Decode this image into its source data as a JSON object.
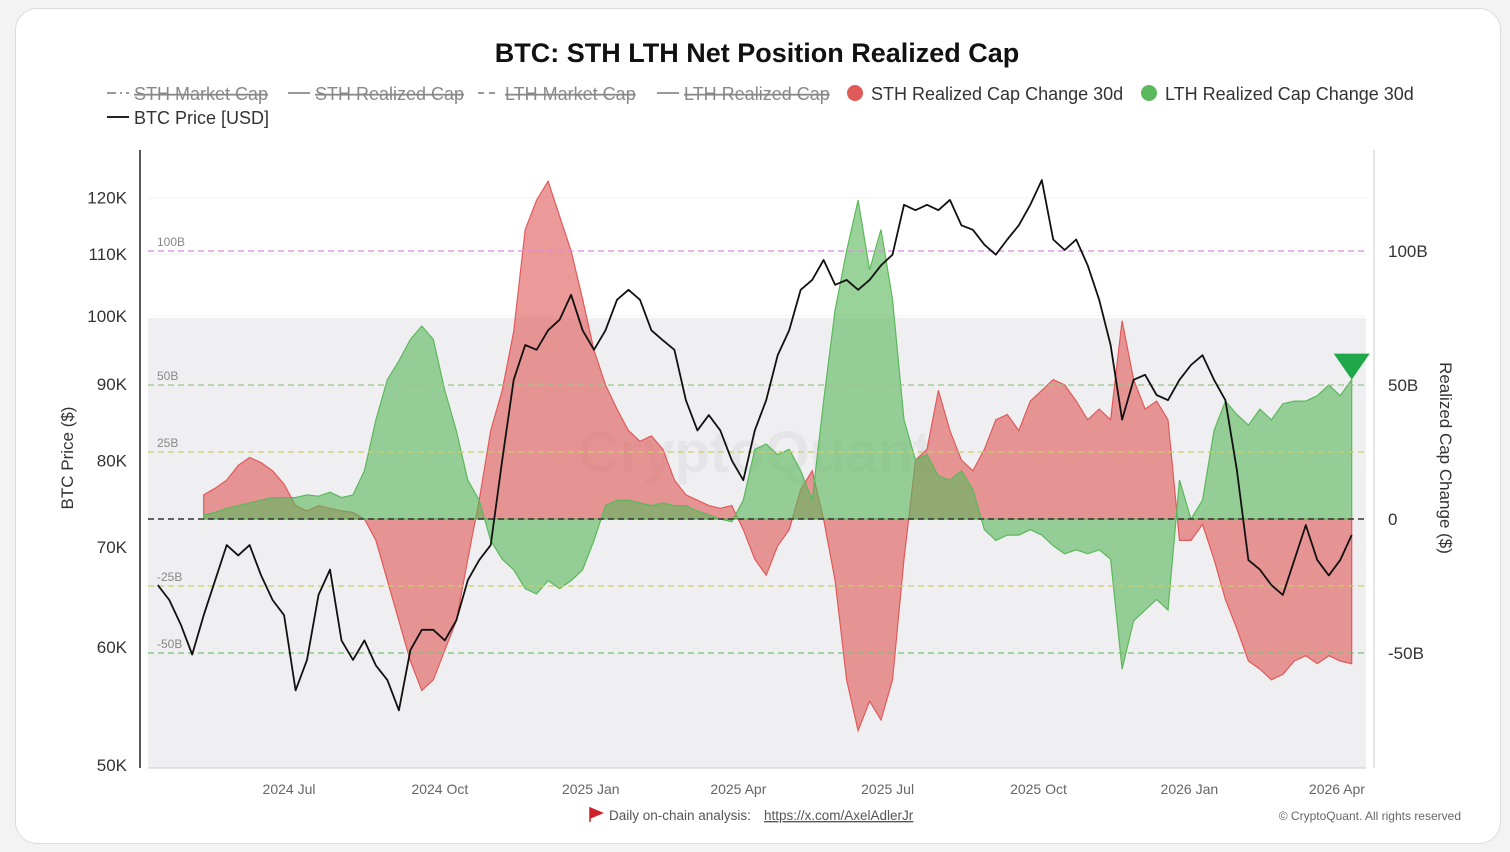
{
  "chart_data": {
    "type": "area",
    "title": "BTC: STH LTH Net Position Realized Cap",
    "legend": {
      "placement": "top",
      "items": [
        {
          "label": "STH Market Cap",
          "style": "dash-dot",
          "hidden": true
        },
        {
          "label": "STH Realized Cap",
          "style": "solid",
          "hidden": true
        },
        {
          "label": "LTH Market Cap",
          "style": "dashed",
          "hidden": true
        },
        {
          "label": "LTH Realized Cap",
          "style": "solid",
          "hidden": true
        },
        {
          "label": "STH Realized Cap Change 30d",
          "style": "dot",
          "color": "#e05a5a",
          "hidden": false
        },
        {
          "label": "LTH Realized Cap Change 30d",
          "style": "dot",
          "color": "#5cb85c",
          "hidden": false
        },
        {
          "label": "BTC Price [USD]",
          "style": "solid",
          "color": "#111111",
          "hidden": false
        }
      ]
    },
    "ylabel_left": "BTC Price ($)",
    "ylabel_right": "Realized Cap Change ($)",
    "left_axis": {
      "scale": "log",
      "range": [
        50000,
        130000
      ],
      "ticks": [
        {
          "v": 50000,
          "label": "50K"
        },
        {
          "v": 60000,
          "label": "60K"
        },
        {
          "v": 70000,
          "label": "70K"
        },
        {
          "v": 80000,
          "label": "80K"
        },
        {
          "v": 90000,
          "label": "90K"
        },
        {
          "v": 100000,
          "label": "100K"
        },
        {
          "v": 110000,
          "label": "110K"
        },
        {
          "v": 120000,
          "label": "120K"
        }
      ]
    },
    "right_axis": {
      "unit": "B",
      "range": [
        -90,
        140
      ],
      "ticks": [
        {
          "v": -50,
          "label": "-50B"
        },
        {
          "v": 0,
          "label": "0"
        },
        {
          "v": 50,
          "label": "50B"
        },
        {
          "v": 100,
          "label": "100B"
        }
      ]
    },
    "reference_lines": [
      {
        "v": 100,
        "label": "100B",
        "color": "#d98ae0"
      },
      {
        "v": 50,
        "label": "50B",
        "color": "#9cc48a"
      },
      {
        "v": 25,
        "label": "25B",
        "color": "#c9cf6a"
      },
      {
        "v": 0,
        "label": "",
        "color": "#333333"
      },
      {
        "v": -25,
        "label": "-25B",
        "color": "#c9cf6a"
      },
      {
        "v": -50,
        "label": "-50B",
        "color": "#7cc07a"
      }
    ],
    "x_ticks": [
      {
        "date": "2024-07-01",
        "label": "2024 Jul"
      },
      {
        "date": "2024-10-01",
        "label": "2024 Oct"
      },
      {
        "date": "2025-01-01",
        "label": "2025 Jan"
      },
      {
        "date": "2025-04-01",
        "label": "2025 Apr"
      },
      {
        "date": "2025-07-01",
        "label": "2025 Jul"
      },
      {
        "date": "2025-10-01",
        "label": "2025 Oct"
      },
      {
        "date": "2026-01-01",
        "label": "2026 Jan"
      },
      {
        "date": "2026-04-01",
        "label": "2026 Apr"
      }
    ],
    "x": [
      "2024-04-12",
      "2024-04-19",
      "2024-04-26",
      "2024-05-03",
      "2024-05-10",
      "2024-05-17",
      "2024-05-24",
      "2024-05-31",
      "2024-06-07",
      "2024-06-14",
      "2024-06-21",
      "2024-06-28",
      "2024-07-05",
      "2024-07-12",
      "2024-07-19",
      "2024-07-26",
      "2024-08-02",
      "2024-08-09",
      "2024-08-16",
      "2024-08-23",
      "2024-08-30",
      "2024-09-06",
      "2024-09-13",
      "2024-09-20",
      "2024-09-27",
      "2024-10-04",
      "2024-10-11",
      "2024-10-18",
      "2024-10-25",
      "2024-11-01",
      "2024-11-08",
      "2024-11-15",
      "2024-11-22",
      "2024-11-29",
      "2024-12-06",
      "2024-12-13",
      "2024-12-20",
      "2024-12-27",
      "2025-01-03",
      "2025-01-10",
      "2025-01-17",
      "2025-01-24",
      "2025-01-31",
      "2025-02-07",
      "2025-02-14",
      "2025-02-21",
      "2025-02-28",
      "2025-03-07",
      "2025-03-14",
      "2025-03-21",
      "2025-03-28",
      "2025-04-04",
      "2025-04-11",
      "2025-04-18",
      "2025-04-25",
      "2025-05-02",
      "2025-05-09",
      "2025-05-16",
      "2025-05-23",
      "2025-05-30",
      "2025-06-06",
      "2025-06-13",
      "2025-06-20",
      "2025-06-27",
      "2025-07-04",
      "2025-07-11",
      "2025-07-18",
      "2025-07-25",
      "2025-08-01",
      "2025-08-08",
      "2025-08-15",
      "2025-08-22",
      "2025-08-29",
      "2025-09-05",
      "2025-09-12",
      "2025-09-19",
      "2025-09-26",
      "2025-10-03",
      "2025-10-10",
      "2025-10-17",
      "2025-10-24",
      "2025-10-31",
      "2025-11-07",
      "2025-11-14",
      "2025-11-21",
      "2025-11-28",
      "2025-12-05",
      "2025-12-12",
      "2025-12-19",
      "2025-12-26",
      "2026-01-02",
      "2026-01-09",
      "2026-01-16",
      "2026-01-23",
      "2026-01-30",
      "2026-02-06",
      "2026-02-13",
      "2026-02-20",
      "2026-02-27",
      "2026-03-06",
      "2026-03-13",
      "2026-03-20",
      "2026-03-27",
      "2026-04-03",
      "2026-04-10"
    ],
    "series": [
      {
        "name": "BTC Price [USD]",
        "axis": "left",
        "unit": "K USD",
        "color": "#111111",
        "values": [
          66.0,
          64.5,
          62.1,
          59.3,
          63.0,
          66.5,
          70.2,
          69.1,
          70.2,
          67.0,
          64.5,
          63.0,
          56.1,
          58.8,
          65.0,
          67.6,
          60.6,
          58.8,
          60.6,
          58.3,
          57.0,
          54.4,
          59.7,
          61.6,
          61.6,
          60.6,
          62.5,
          66.5,
          68.6,
          70.2,
          80.0,
          90.6,
          95.6,
          94.9,
          97.8,
          99.4,
          103.3,
          97.8,
          94.9,
          97.8,
          102.5,
          104.1,
          102.5,
          97.8,
          96.3,
          94.9,
          87.8,
          83.8,
          85.8,
          83.8,
          80.0,
          77.6,
          83.8,
          87.8,
          94.1,
          97.8,
          104.1,
          105.7,
          109.0,
          104.9,
          105.7,
          104.1,
          105.7,
          108.1,
          109.9,
          118.7,
          117.7,
          118.7,
          117.7,
          119.6,
          115.0,
          114.2,
          111.6,
          109.9,
          112.5,
          115.0,
          118.7,
          123.3,
          112.5,
          110.7,
          112.5,
          108.1,
          102.5,
          95.6,
          85.2,
          90.6,
          91.3,
          88.5,
          87.8,
          90.6,
          92.7,
          94.1,
          90.6,
          87.8,
          78.8,
          68.6,
          67.6,
          66.0,
          65.0,
          68.6,
          72.4,
          68.6,
          67.0,
          68.6,
          71.3
        ]
      },
      {
        "name": "STH Realized Cap Change 30d",
        "axis": "right",
        "unit": "B USD",
        "color": "#e05a5a",
        "values": [
          null,
          null,
          null,
          null,
          9,
          11.5,
          14.5,
          20,
          23,
          21,
          18,
          13,
          5,
          3,
          5,
          4,
          3,
          2.5,
          0,
          -8,
          -23,
          -38,
          -53,
          -64,
          -60,
          -49,
          -38,
          -15,
          7,
          33,
          48,
          70,
          108,
          119,
          126,
          113,
          100,
          82,
          63,
          50,
          41,
          33,
          29,
          31,
          26,
          14.5,
          9,
          7,
          5,
          4,
          5,
          -4,
          -15,
          -21,
          -10,
          -4,
          11,
          18,
          0,
          -23,
          -60,
          -79,
          -68,
          -75,
          -60,
          -15,
          22,
          26,
          48,
          33,
          22,
          18,
          26,
          37,
          39,
          33,
          44,
          48,
          52,
          50,
          44,
          37,
          41,
          37,
          74,
          52,
          41,
          44,
          37,
          -8,
          -8,
          -2,
          -15,
          -30,
          -41,
          -53,
          -56,
          -60,
          -58,
          -53,
          -51,
          -54,
          -51,
          -53,
          -54
        ]
      },
      {
        "name": "LTH Realized Cap Change 30d",
        "axis": "right",
        "unit": "B USD",
        "color": "#5cb85c",
        "values": [
          null,
          null,
          null,
          null,
          1.5,
          2.5,
          4,
          5,
          6,
          7,
          8,
          8,
          8,
          9,
          8.5,
          10,
          8,
          9,
          18,
          37,
          52,
          59,
          67,
          72,
          67,
          48,
          33,
          14.5,
          7,
          -8,
          -15,
          -19,
          -26,
          -28,
          -23,
          -26,
          -23,
          -19,
          -8,
          5,
          7,
          7,
          6,
          5,
          6,
          5,
          5,
          3,
          1.5,
          0,
          -1,
          7,
          26,
          28,
          24,
          26,
          18,
          7,
          44,
          78,
          100,
          119,
          93,
          108,
          82,
          37,
          22,
          24,
          16,
          14.5,
          18,
          11,
          -4,
          -8,
          -6,
          -6,
          -4,
          -6,
          -10,
          -13,
          -11.5,
          -13,
          -11.5,
          -15,
          -56,
          -38,
          -34,
          -30,
          -34,
          14.5,
          0,
          7,
          33,
          44,
          39,
          35,
          41,
          37,
          43,
          44,
          44,
          46,
          50,
          46,
          52
        ]
      }
    ],
    "marker": {
      "shape": "triangle-down",
      "color": "#1fa84a",
      "series": "LTH Realized Cap Change 30d",
      "date": "2026-04-10"
    },
    "grid": true
  },
  "watermark": "CryptoQuant",
  "footer": {
    "analysis_label": "Daily on-chain analysis:",
    "analysis_link": "https://x.com/AxelAdlerJr",
    "copyright": "© CryptoQuant. All rights reserved",
    "flag_color": "#d0202a"
  }
}
